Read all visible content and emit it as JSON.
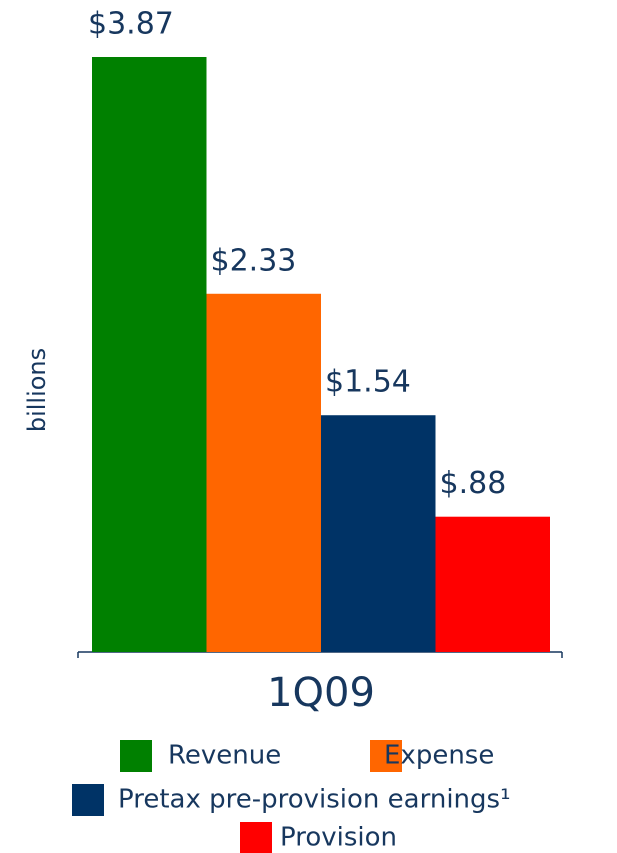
{
  "chart_data": {
    "type": "bar",
    "ylabel": "billions",
    "categories": [
      "1Q09"
    ],
    "series": [
      {
        "name": "Revenue",
        "color": "#008000",
        "values": [
          3.87
        ],
        "value_labels": [
          "$3.87"
        ]
      },
      {
        "name": "Expense",
        "color": "#ff6600",
        "values": [
          2.33
        ],
        "value_labels": [
          "$2.33"
        ]
      },
      {
        "name": "Pretax pre-provision earnings¹",
        "color": "#003366",
        "values": [
          1.54
        ],
        "value_labels": [
          "$1.54"
        ]
      },
      {
        "name": "Provision",
        "color": "#ff0000",
        "values": [
          0.88
        ],
        "value_labels": [
          "$.88"
        ]
      }
    ]
  }
}
